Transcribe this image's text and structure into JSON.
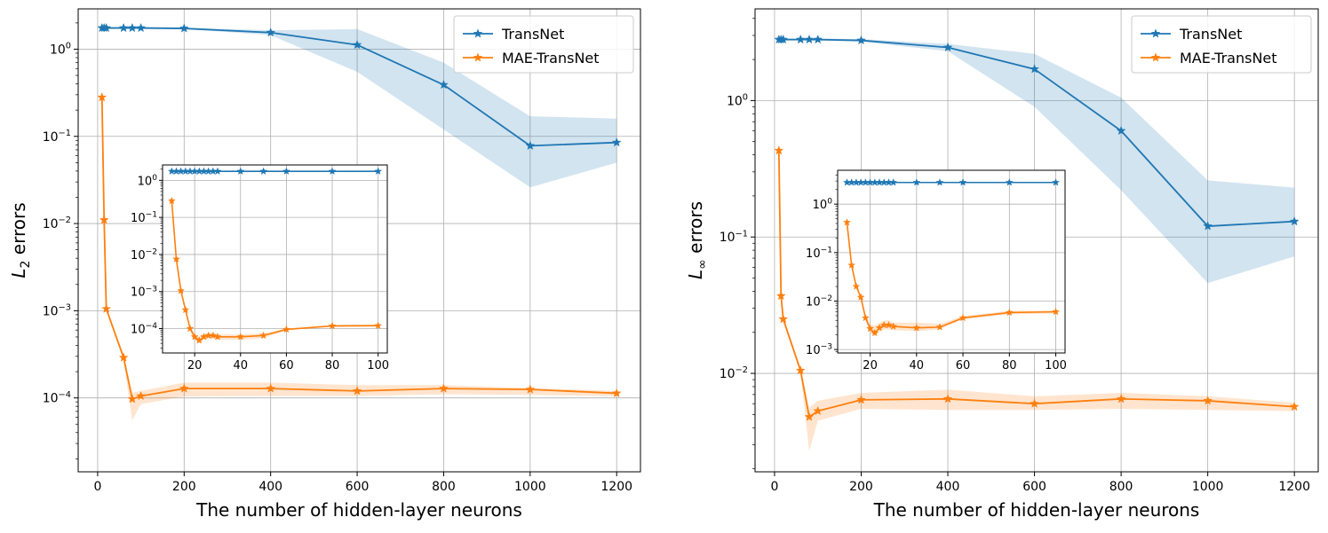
{
  "chart_data": [
    {
      "type": "line",
      "yscale": "log",
      "xlabel": "The number of hidden-layer neurons",
      "ylabel_main": "L",
      "ylabel_sub": "2",
      "ylabel_rest": " errors",
      "xlim": [
        -45,
        1255
      ],
      "ylim": [
        1.42e-05,
        2.9
      ],
      "x_ticks": [
        0,
        200,
        400,
        600,
        800,
        1000,
        1200
      ],
      "y_ticks": [
        {
          "value": 1,
          "base": "10",
          "exp": "0"
        },
        {
          "value": 0.1,
          "base": "10",
          "exp": "−1"
        },
        {
          "value": 0.01,
          "base": "10",
          "exp": "−2"
        },
        {
          "value": 0.001,
          "base": "10",
          "exp": "−3"
        },
        {
          "value": 0.0001,
          "base": "10",
          "exp": "−4"
        }
      ],
      "legend": [
        "TransNet",
        "MAE-TransNet"
      ],
      "series": [
        {
          "name": "TransNet",
          "color": "#1f77b4",
          "x": [
            10,
            15,
            20,
            60,
            80,
            100,
            200,
            400,
            600,
            800,
            1000,
            1200
          ],
          "y": [
            1.75,
            1.75,
            1.75,
            1.75,
            1.75,
            1.75,
            1.73,
            1.55,
            1.12,
            0.39,
            0.078,
            0.085
          ],
          "band_low": [
            1.72,
            1.72,
            1.72,
            1.72,
            1.72,
            1.72,
            1.7,
            1.45,
            0.55,
            0.12,
            0.026,
            0.05
          ],
          "band_high": [
            1.78,
            1.78,
            1.78,
            1.78,
            1.78,
            1.78,
            1.76,
            1.65,
            1.7,
            0.7,
            0.17,
            0.16
          ]
        },
        {
          "name": "MAE-TransNet",
          "color": "#ff7f0e",
          "x": [
            10,
            15,
            20,
            60,
            80,
            100,
            200,
            400,
            600,
            800,
            1000,
            1200
          ],
          "y": [
            0.28,
            0.011,
            0.00105,
            0.00029,
            9.7e-05,
            0.000105,
            0.000128,
            0.000128,
            0.00012,
            0.000128,
            0.000125,
            0.000113
          ],
          "band_low": [
            0.27,
            0.0105,
            0.001,
            0.00027,
            5.5e-05,
            8.5e-05,
            0.000104,
            0.000105,
            0.000105,
            0.00011,
            0.000108,
            0.000105
          ],
          "band_high": [
            0.29,
            0.0115,
            0.0011,
            0.00031,
            0.000115,
            0.00012,
            0.00015,
            0.00015,
            0.00014,
            0.00014,
            0.00013,
            0.00012
          ]
        }
      ],
      "inset": {
        "xlim": [
          6,
          104
        ],
        "ylim": [
          2.2e-05,
          2.6
        ],
        "x_ticks": [
          20,
          40,
          60,
          80,
          100
        ],
        "y_ticks": [
          {
            "value": 1,
            "base": "10",
            "exp": "0"
          },
          {
            "value": 0.1,
            "base": "10",
            "exp": "−1"
          },
          {
            "value": 0.01,
            "base": "10",
            "exp": "−2"
          },
          {
            "value": 0.001,
            "base": "10",
            "exp": "−3"
          },
          {
            "value": 0.0001,
            "base": "10",
            "exp": "−4"
          }
        ],
        "series": [
          {
            "name": "TransNet",
            "color": "#1f77b4",
            "x": [
              10,
              12,
              14,
              16,
              18,
              20,
              22,
              24,
              26,
              28,
              30,
              40,
              50,
              60,
              80,
              100
            ],
            "y": [
              1.75,
              1.75,
              1.75,
              1.75,
              1.75,
              1.75,
              1.75,
              1.75,
              1.75,
              1.75,
              1.75,
              1.75,
              1.75,
              1.75,
              1.75,
              1.75
            ]
          },
          {
            "name": "MAE-TransNet",
            "color": "#ff7f0e",
            "x": [
              10,
              12,
              14,
              16,
              18,
              20,
              22,
              24,
              26,
              28,
              30,
              40,
              50,
              60,
              80,
              100
            ],
            "y": [
              0.28,
              0.0075,
              0.00105,
              0.00032,
              0.0001,
              6e-05,
              4.8e-05,
              6e-05,
              6.5e-05,
              6.5e-05,
              6e-05,
              6e-05,
              6.5e-05,
              9.5e-05,
              0.000118,
              0.00012
            ],
            "band_low": [
              0.27,
              0.007,
              0.001,
              0.0003,
              8.5e-05,
              5e-05,
              4e-05,
              5e-05,
              5.5e-05,
              5.5e-05,
              5e-05,
              5e-05,
              5.5e-05,
              9e-05,
              0.00011,
              0.000112
            ],
            "band_high": [
              0.29,
              0.008,
              0.0011,
              0.00034,
              0.000118,
              7e-05,
              6e-05,
              7e-05,
              7.5e-05,
              7.5e-05,
              7e-05,
              7e-05,
              7.5e-05,
              0.0001,
              0.000126,
              0.000128
            ]
          }
        ]
      }
    },
    {
      "type": "line",
      "yscale": "log",
      "xlabel": "The number of hidden-layer neurons",
      "ylabel_main": "L",
      "ylabel_sub": "∞",
      "ylabel_rest": " errors",
      "xlim": [
        -45,
        1255
      ],
      "ylim": [
        0.0019,
        4.7
      ],
      "x_ticks": [
        0,
        200,
        400,
        600,
        800,
        1000,
        1200
      ],
      "y_ticks": [
        {
          "value": 1,
          "base": "10",
          "exp": "0"
        },
        {
          "value": 0.1,
          "base": "10",
          "exp": "−1"
        },
        {
          "value": 0.01,
          "base": "10",
          "exp": "−2"
        }
      ],
      "legend": [
        "TransNet",
        "MAE-TransNet"
      ],
      "series": [
        {
          "name": "TransNet",
          "color": "#1f77b4",
          "x": [
            10,
            15,
            20,
            60,
            80,
            100,
            200,
            400,
            600,
            800,
            1000,
            1200
          ],
          "y": [
            2.8,
            2.8,
            2.8,
            2.8,
            2.8,
            2.8,
            2.76,
            2.45,
            1.7,
            0.6,
            0.12,
            0.13
          ],
          "band_low": [
            2.75,
            2.75,
            2.75,
            2.75,
            2.75,
            2.75,
            2.7,
            2.3,
            0.9,
            0.22,
            0.046,
            0.072
          ],
          "band_high": [
            2.85,
            2.85,
            2.85,
            2.85,
            2.85,
            2.85,
            2.82,
            2.6,
            2.2,
            1.05,
            0.26,
            0.23
          ]
        },
        {
          "name": "MAE-TransNet",
          "color": "#ff7f0e",
          "x": [
            10,
            15,
            20,
            60,
            80,
            100,
            200,
            400,
            600,
            800,
            1000,
            1200
          ],
          "y": [
            0.43,
            0.037,
            0.025,
            0.0105,
            0.0048,
            0.0053,
            0.0064,
            0.0065,
            0.006,
            0.0065,
            0.0063,
            0.0057
          ],
          "band_low": [
            0.42,
            0.036,
            0.024,
            0.01,
            0.0027,
            0.0045,
            0.0055,
            0.0054,
            0.0054,
            0.0055,
            0.0054,
            0.0053
          ],
          "band_high": [
            0.44,
            0.038,
            0.026,
            0.011,
            0.0056,
            0.0063,
            0.0072,
            0.0076,
            0.0068,
            0.0072,
            0.0068,
            0.0061
          ]
        }
      ],
      "inset": {
        "xlim": [
          6,
          104
        ],
        "ylim": [
          0.00085,
          5.0
        ],
        "x_ticks": [
          20,
          40,
          60,
          80,
          100
        ],
        "y_ticks": [
          {
            "value": 1,
            "base": "10",
            "exp": "0"
          },
          {
            "value": 0.1,
            "base": "10",
            "exp": "−1"
          },
          {
            "value": 0.01,
            "base": "10",
            "exp": "−2"
          },
          {
            "value": 0.001,
            "base": "10",
            "exp": "−3"
          }
        ],
        "series": [
          {
            "name": "TransNet",
            "color": "#1f77b4",
            "x": [
              10,
              12,
              14,
              16,
              18,
              20,
              22,
              24,
              26,
              28,
              30,
              40,
              50,
              60,
              80,
              100
            ],
            "y": [
              2.8,
              2.8,
              2.8,
              2.8,
              2.8,
              2.8,
              2.8,
              2.8,
              2.8,
              2.8,
              2.8,
              2.8,
              2.8,
              2.8,
              2.8,
              2.8
            ]
          },
          {
            "name": "MAE-TransNet",
            "color": "#ff7f0e",
            "x": [
              10,
              12,
              14,
              16,
              18,
              20,
              22,
              24,
              26,
              28,
              30,
              40,
              50,
              60,
              80,
              100
            ],
            "y": [
              0.42,
              0.055,
              0.02,
              0.012,
              0.0045,
              0.0027,
              0.0022,
              0.0028,
              0.0032,
              0.0032,
              0.003,
              0.0028,
              0.0029,
              0.0045,
              0.0058,
              0.006
            ],
            "band_low": [
              0.41,
              0.052,
              0.019,
              0.011,
              0.004,
              0.0022,
              0.0019,
              0.0023,
              0.0026,
              0.0026,
              0.0025,
              0.0024,
              0.0026,
              0.0042,
              0.0053,
              0.0056
            ],
            "band_high": [
              0.43,
              0.058,
              0.021,
              0.013,
              0.005,
              0.0033,
              0.0031,
              0.0036,
              0.004,
              0.004,
              0.0036,
              0.0036,
              0.0034,
              0.0049,
              0.0063,
              0.0064
            ]
          }
        ]
      }
    }
  ]
}
